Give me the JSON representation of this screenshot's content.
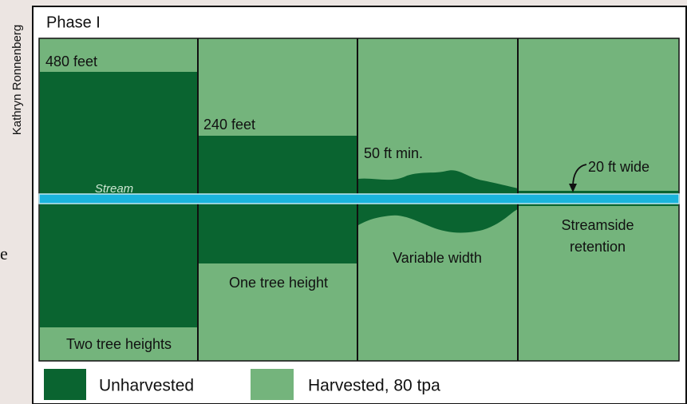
{
  "credit": "Kathryn Ronnenberg",
  "fragment": "e",
  "title": "Phase I",
  "stream_label": "Stream",
  "panels": [
    {
      "top": "480 feet",
      "bottom": "Two tree heights"
    },
    {
      "top": "240 feet",
      "bottom": "One tree height"
    },
    {
      "top": "50 ft min.",
      "bottom": "Variable width"
    },
    {
      "top": "20 ft wide",
      "bottom": [
        "Streamside",
        "retention"
      ]
    }
  ],
  "legend": [
    "Unharvested",
    "Harvested, 80 tpa"
  ]
}
